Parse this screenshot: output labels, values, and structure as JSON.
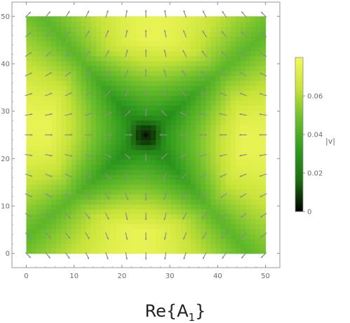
{
  "chart_data": {
    "type": "heatmap",
    "subtype": "vector field over density plot",
    "title_main": "Re",
    "title_open": "{",
    "title_var": "A",
    "title_sub": "1",
    "title_close": "}",
    "xlabel": "",
    "ylabel": "",
    "xlim": [
      -3,
      53
    ],
    "ylim": [
      -3,
      53
    ],
    "domain": [
      0,
      50
    ],
    "x_ticks": [
      0,
      10,
      20,
      30,
      40,
      50
    ],
    "y_ticks": [
      0,
      10,
      20,
      30,
      40,
      50
    ],
    "x_tick_labels": [
      "0",
      "10",
      "20",
      "30",
      "40",
      "50"
    ],
    "y_tick_labels": [
      "0",
      "10",
      "20",
      "30",
      "40",
      "50"
    ],
    "center": [
      25,
      25
    ],
    "colorbar": {
      "label": "|v|",
      "range": [
        0,
        0.08
      ],
      "ticks": [
        0,
        0.02,
        0.04,
        0.06
      ],
      "tick_labels": [
        "0",
        "0.02",
        "0.04",
        "0.06"
      ],
      "colors": [
        "#000000",
        "#1c6b10",
        "#2f9a1e",
        "#6bbd2c",
        "#c8e33a",
        "#f2f85a"
      ]
    },
    "magnitude_extremes": {
      "minimum": {
        "x": 25,
        "y": 25,
        "value": 0.0
      },
      "maximum_regions": [
        "top-center",
        "bottom-center",
        "left-center",
        "right-center"
      ]
    },
    "arrow_grid": {
      "x": [
        0,
        4.17,
        8.33,
        12.5,
        16.67,
        20.83,
        25,
        29.17,
        33.33,
        37.5,
        41.67,
        45.83,
        50
      ],
      "y": [
        0,
        4.17,
        8.33,
        12.5,
        16.67,
        20.83,
        25,
        29.17,
        33.33,
        37.5,
        41.67,
        45.83,
        50
      ]
    },
    "arrow_color": "#8c8c8c"
  }
}
